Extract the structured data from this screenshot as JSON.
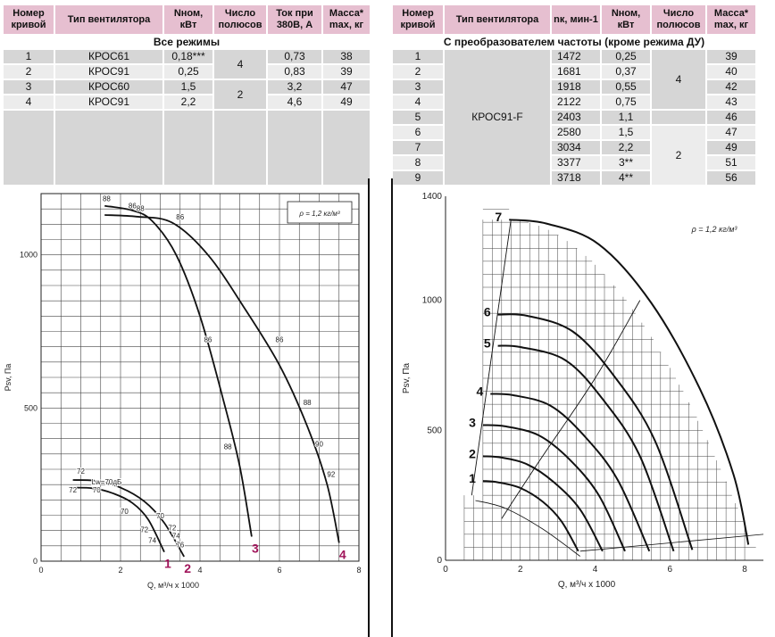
{
  "left_table": {
    "headers": [
      "Номер кривой",
      "Тип вентилятора",
      "Nном, кВт",
      "Число полюсов",
      "Ток при 380В, А",
      "Масса* max, кг"
    ],
    "subtitle": "Все режимы",
    "rows": [
      {
        "curve": "1",
        "type": "КРОС61",
        "power": "0,18***",
        "current": "0,73",
        "mass": "38"
      },
      {
        "curve": "2",
        "type": "КРОС91",
        "power": "0,25",
        "current": "0,83",
        "mass": "39"
      },
      {
        "curve": "3",
        "type": "КРОС60",
        "power": "1,5",
        "current": "3,2",
        "mass": "47"
      },
      {
        "curve": "4",
        "type": "КРОС91",
        "power": "2,2",
        "current": "4,6",
        "mass": "49"
      }
    ],
    "poles": [
      "4",
      "2"
    ]
  },
  "right_table": {
    "headers": [
      "Номер кривой",
      "Тип вентилятора",
      "nк, мин-1",
      "Nном, кВт",
      "Число полюсов",
      "Масса* max, кг"
    ],
    "subtitle": "С преобразователем частоты (кроме режима ДУ)",
    "fan_type": "КРОС91-F",
    "rows": [
      {
        "curve": "1",
        "rpm": "1472",
        "power": "0,25",
        "mass": "39"
      },
      {
        "curve": "2",
        "rpm": "1681",
        "power": "0,37",
        "mass": "40"
      },
      {
        "curve": "3",
        "rpm": "1918",
        "power": "0,55",
        "mass": "42"
      },
      {
        "curve": "4",
        "rpm": "2122",
        "power": "0,75",
        "mass": "43"
      },
      {
        "curve": "5",
        "rpm": "2403",
        "power": "1,1",
        "mass": "46"
      },
      {
        "curve": "6",
        "rpm": "2580",
        "power": "1,5",
        "mass": "47"
      },
      {
        "curve": "7",
        "rpm": "3034",
        "power": "2,2",
        "mass": "49"
      },
      {
        "curve": "8",
        "rpm": "3377",
        "power": "3**",
        "mass": "51"
      },
      {
        "curve": "9",
        "rpm": "3718",
        "power": "4**",
        "mass": "56"
      }
    ],
    "poles": [
      "4",
      "2"
    ]
  },
  "chart_data": [
    {
      "type": "line",
      "xlabel": "Q, м³/ч x 1000",
      "ylabel": "Psv, Па",
      "xlim": [
        0,
        8
      ],
      "ylim": [
        0,
        1200
      ],
      "x_ticks": [
        "0",
        "2",
        "4",
        "6",
        "8"
      ],
      "y_ticks": [
        "0",
        "500",
        "1000"
      ],
      "grid": true,
      "annotation": "ρ = 1,2 кг/м³",
      "series": [
        {
          "name": "1",
          "color": "#a0145a",
          "points": [
            [
              0.8,
              240
            ],
            [
              1.3,
              238
            ],
            [
              1.8,
              222
            ],
            [
              2.3,
              190
            ],
            [
              2.7,
              135
            ],
            [
              3.1,
              30
            ]
          ]
        },
        {
          "name": "2",
          "color": "#a0145a",
          "points": [
            [
              0.8,
              265
            ],
            [
              1.4,
              262
            ],
            [
              2.0,
              240
            ],
            [
              2.6,
              195
            ],
            [
              3.1,
              125
            ],
            [
              3.6,
              15
            ]
          ]
        },
        {
          "name": "3",
          "color": "#a0145a",
          "points": [
            [
              1.6,
              1160
            ],
            [
              2.3,
              1145
            ],
            [
              2.8,
              1110
            ],
            [
              3.4,
              1000
            ],
            [
              4.0,
              800
            ],
            [
              4.6,
              520
            ],
            [
              5.0,
              310
            ],
            [
              5.3,
              80
            ]
          ]
        },
        {
          "name": "4",
          "color": "#a0145a",
          "points": [
            [
              1.6,
              1130
            ],
            [
              2.4,
              1125
            ],
            [
              3.3,
              1105
            ],
            [
              4.2,
              1000
            ],
            [
              5.1,
              830
            ],
            [
              6.0,
              640
            ],
            [
              6.7,
              440
            ],
            [
              7.2,
              250
            ],
            [
              7.5,
              60
            ]
          ]
        }
      ],
      "labels": [
        {
          "text": "88",
          "x": 1.65,
          "y": 1175
        },
        {
          "text": "86",
          "x": 2.3,
          "y": 1152
        },
        {
          "text": "88",
          "x": 2.5,
          "y": 1143
        },
        {
          "text": "86",
          "x": 3.5,
          "y": 1116
        },
        {
          "text": "86",
          "x": 4.2,
          "y": 715
        },
        {
          "text": "86",
          "x": 6.0,
          "y": 715
        },
        {
          "text": "88",
          "x": 4.7,
          "y": 365
        },
        {
          "text": "88",
          "x": 6.7,
          "y": 510
        },
        {
          "text": "90",
          "x": 7.0,
          "y": 375
        },
        {
          "text": "92",
          "x": 7.3,
          "y": 275
        },
        {
          "text": "72",
          "x": 1.0,
          "y": 285
        },
        {
          "text": "72",
          "x": 0.8,
          "y": 225
        },
        {
          "text": "70",
          "x": 1.4,
          "y": 225
        },
        {
          "text": "Lw=70дБ",
          "x": 1.65,
          "y": 250
        },
        {
          "text": "70",
          "x": 2.1,
          "y": 155
        },
        {
          "text": "70",
          "x": 3.0,
          "y": 140
        },
        {
          "text": "72",
          "x": 2.6,
          "y": 95
        },
        {
          "text": "72",
          "x": 3.3,
          "y": 100
        },
        {
          "text": "74",
          "x": 2.8,
          "y": 60
        },
        {
          "text": "74",
          "x": 3.4,
          "y": 75
        },
        {
          "text": "76",
          "x": 3.5,
          "y": 45
        }
      ]
    },
    {
      "type": "line",
      "xlabel": "Q, м³/ч x 1000",
      "ylabel": "Psv, Па",
      "xlim": [
        0,
        8.5
      ],
      "ylim": [
        0,
        1400
      ],
      "x_ticks": [
        "0",
        "2",
        "4",
        "6",
        "8"
      ],
      "y_ticks": [
        "0",
        "500",
        "1000",
        "1400"
      ],
      "grid": true,
      "annotation": "ρ = 1,2 кг/м³",
      "series": [
        {
          "name": "1",
          "max_x": 3.55,
          "points": [
            [
              1.0,
              305
            ],
            [
              1.4,
              300
            ],
            [
              2.0,
              278
            ],
            [
              2.6,
              225
            ],
            [
              3.1,
              150
            ],
            [
              3.55,
              35
            ]
          ]
        },
        {
          "name": "2",
          "max_x": 4.2,
          "points": [
            [
              1.0,
              400
            ],
            [
              1.5,
              395
            ],
            [
              2.2,
              368
            ],
            [
              2.9,
              300
            ],
            [
              3.6,
              195
            ],
            [
              4.2,
              35
            ]
          ]
        },
        {
          "name": "3",
          "max_x": 4.8,
          "points": [
            [
              1.0,
              520
            ],
            [
              1.6,
              515
            ],
            [
              2.5,
              480
            ],
            [
              3.3,
              390
            ],
            [
              4.1,
              250
            ],
            [
              4.8,
              35
            ]
          ]
        },
        {
          "name": "4",
          "max_x": 5.45,
          "points": [
            [
              1.2,
              640
            ],
            [
              1.8,
              635
            ],
            [
              2.8,
              595
            ],
            [
              3.7,
              480
            ],
            [
              4.6,
              310
            ],
            [
              5.45,
              35
            ]
          ]
        },
        {
          "name": "5",
          "max_x": 6.1,
          "points": [
            [
              1.4,
              825
            ],
            [
              2.0,
              820
            ],
            [
              3.2,
              770
            ],
            [
              4.2,
              620
            ],
            [
              5.2,
              400
            ],
            [
              6.1,
              35
            ]
          ]
        },
        {
          "name": "6",
          "max_x": 6.6,
          "points": [
            [
              1.4,
              945
            ],
            [
              2.2,
              940
            ],
            [
              3.4,
              880
            ],
            [
              4.5,
              710
            ],
            [
              5.6,
              460
            ],
            [
              6.6,
              40
            ]
          ]
        },
        {
          "name": "7",
          "max_x": 8.1,
          "points": [
            [
              1.7,
              1310
            ],
            [
              2.7,
              1295
            ],
            [
              4.1,
              1215
            ],
            [
              5.5,
              990
            ],
            [
              6.8,
              660
            ],
            [
              7.7,
              330
            ],
            [
              8.1,
              60
            ]
          ]
        }
      ],
      "labels": []
    }
  ]
}
